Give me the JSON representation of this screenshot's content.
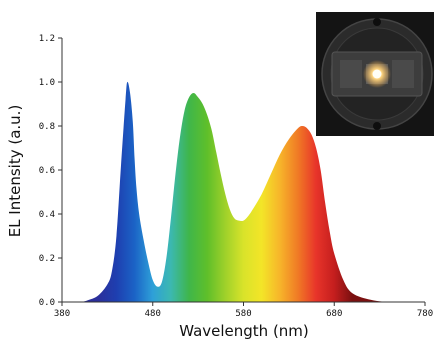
{
  "chart_data": {
    "type": "area",
    "title": "",
    "xlabel": "Wavelength (nm)",
    "ylabel": "EL Intensity (a.u.)",
    "xlim": [
      380,
      780
    ],
    "ylim": [
      0,
      1.2
    ],
    "x_ticks": [
      "380",
      "480",
      "580",
      "680",
      "780"
    ],
    "y_ticks": [
      "0.0",
      "0.2",
      "0.4",
      "0.6",
      "0.8",
      "1.0",
      "1.2"
    ],
    "fill": "visible-spectrum gradient",
    "series": [
      {
        "x": [
          380,
          400,
          410,
          420,
          430,
          435,
          440,
          445,
          450,
          452,
          455,
          458,
          460,
          462,
          465,
          470,
          475,
          480,
          485,
          490,
          495,
          500,
          505,
          510,
          515,
          520,
          525,
          530,
          535,
          540,
          545,
          550,
          555,
          560,
          565,
          570,
          575,
          580,
          585,
          590,
          600,
          610,
          620,
          630,
          640,
          645,
          650,
          655,
          660,
          665,
          670,
          675,
          680,
          690,
          700,
          720,
          740,
          760,
          780
        ],
        "y": [
          0.0,
          0.0,
          0.01,
          0.03,
          0.08,
          0.14,
          0.3,
          0.62,
          0.92,
          1.0,
          0.95,
          0.82,
          0.65,
          0.52,
          0.4,
          0.28,
          0.18,
          0.1,
          0.07,
          0.09,
          0.2,
          0.38,
          0.58,
          0.75,
          0.87,
          0.93,
          0.95,
          0.93,
          0.9,
          0.85,
          0.78,
          0.68,
          0.58,
          0.49,
          0.42,
          0.38,
          0.37,
          0.37,
          0.39,
          0.42,
          0.49,
          0.58,
          0.67,
          0.74,
          0.79,
          0.8,
          0.79,
          0.76,
          0.7,
          0.6,
          0.45,
          0.32,
          0.22,
          0.1,
          0.04,
          0.01,
          0.0,
          0.0,
          0.0
        ]
      }
    ]
  },
  "colors": {
    "spectrum_stops": [
      "#2b2f9b",
      "#1e3fb0",
      "#1b63c6",
      "#2ea0d8",
      "#3cb8b0",
      "#3fb64a",
      "#5fbf2a",
      "#9fd12a",
      "#d9e32a",
      "#f3e528",
      "#f7b52a",
      "#f07a25",
      "#e8342a",
      "#c41e1e",
      "#7a1010"
    ],
    "inset_background": "#1b1b1b"
  },
  "inset_photo": {
    "icon": "led-device-photo"
  }
}
